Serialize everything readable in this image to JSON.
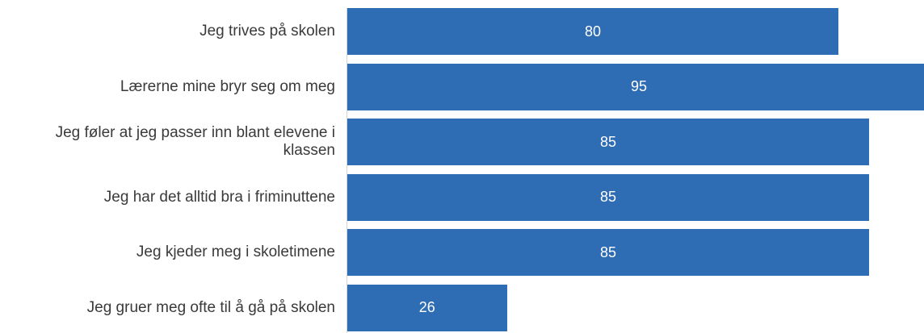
{
  "chart_data": {
    "type": "bar",
    "orientation": "horizontal",
    "categories": [
      "Jeg trives på skolen",
      "Lærerne mine bryr seg om meg",
      "Jeg føler at jeg passer inn blant elevene i klassen",
      "Jeg har det alltid bra i friminuttene",
      "Jeg kjeder meg i skoletimene",
      "Jeg gruer meg ofte til å gå på skolen"
    ],
    "values": [
      80,
      95,
      85,
      85,
      85,
      26
    ],
    "data_labels": [
      "80",
      "95",
      "85",
      "85",
      "85",
      "26"
    ],
    "bar_color": "#2e6db4",
    "label_color": "#ffffff",
    "text_color": "#3a3a3a",
    "axis_color": "#d6d6d6",
    "grid": false,
    "legend": "none"
  }
}
